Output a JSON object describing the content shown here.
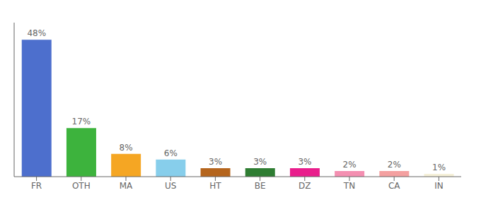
{
  "chart_data": {
    "type": "bar",
    "categories": [
      "FR",
      "OTH",
      "MA",
      "US",
      "HT",
      "BE",
      "DZ",
      "TN",
      "CA",
      "IN"
    ],
    "values": [
      48,
      17,
      8,
      6,
      3,
      3,
      3,
      2,
      2,
      1
    ],
    "value_labels": [
      "48%",
      "17%",
      "8%",
      "6%",
      "3%",
      "3%",
      "3%",
      "2%",
      "2%",
      "1%"
    ],
    "colors": [
      "#4d6fcd",
      "#3db33d",
      "#f5a623",
      "#87ceeb",
      "#b5651d",
      "#2e7d32",
      "#e91e8c",
      "#f48fb1",
      "#f4a0a0",
      "#f5f0d8"
    ],
    "ylim": [
      0,
      54
    ],
    "data_labels": true,
    "tick_labels": "x",
    "grid": false
  }
}
